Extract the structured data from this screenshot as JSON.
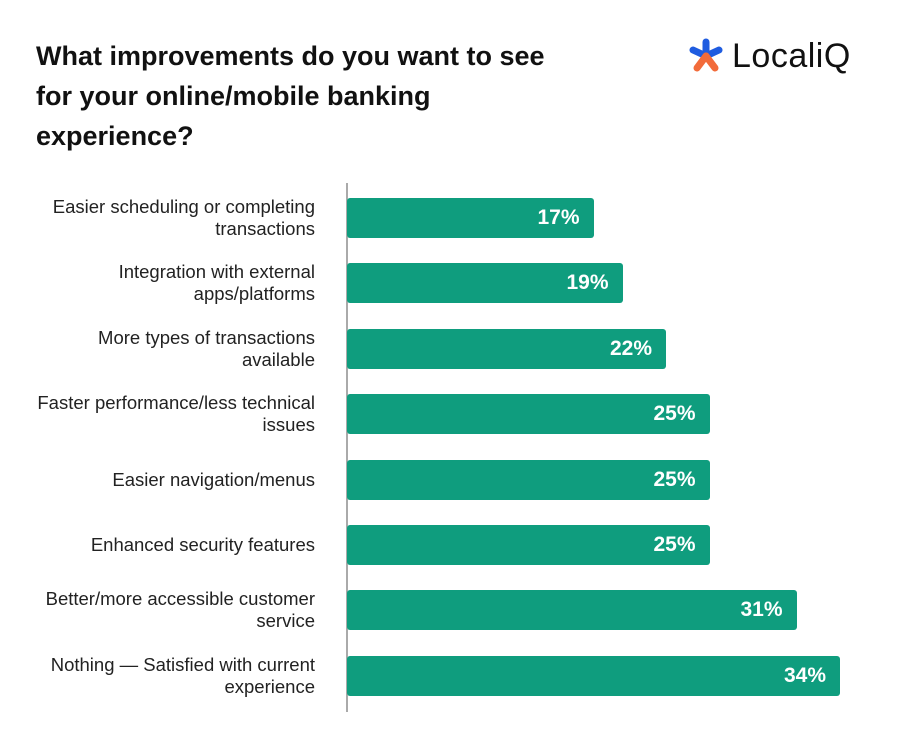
{
  "chart_data": {
    "type": "bar",
    "orientation": "horizontal",
    "title": "What improvements do you want to see for your online/mobile banking experience?",
    "logo": "LocaliQ",
    "categories": [
      "Easier scheduling or completing transactions",
      "Integration with external apps/platforms",
      "More types of transactions available",
      "Faster performance/less technical issues",
      "Easier navigation/menus",
      "Enhanced security features",
      "Better/more accessible customer service",
      "Nothing — Satisfied with current experience"
    ],
    "values": [
      17,
      19,
      22,
      25,
      25,
      25,
      31,
      34
    ],
    "value_labels": [
      "17%",
      "19%",
      "22%",
      "25%",
      "25%",
      "25%",
      "31%",
      "34%"
    ],
    "color": "#0f9d7e"
  }
}
